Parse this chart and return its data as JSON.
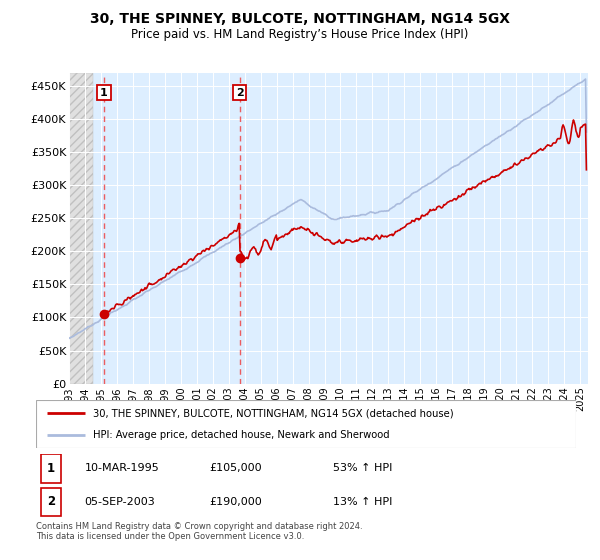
{
  "title": "30, THE SPINNEY, BULCOTE, NOTTINGHAM, NG14 5GX",
  "subtitle": "Price paid vs. HM Land Registry’s House Price Index (HPI)",
  "ylim": [
    0,
    470000
  ],
  "yticks": [
    0,
    50000,
    100000,
    150000,
    200000,
    250000,
    300000,
    350000,
    400000,
    450000
  ],
  "ytick_labels": [
    "£0",
    "£50K",
    "£100K",
    "£150K",
    "£200K",
    "£250K",
    "£300K",
    "£350K",
    "£400K",
    "£450K"
  ],
  "sale1_year": 1995.19,
  "sale1_price": 105000,
  "sale2_year": 2003.68,
  "sale2_price": 190000,
  "legend_label1": "30, THE SPINNEY, BULCOTE, NOTTINGHAM, NG14 5GX (detached house)",
  "legend_label2": "HPI: Average price, detached house, Newark and Sherwood",
  "ann1_date": "10-MAR-1995",
  "ann1_price": "£105,000",
  "ann1_hpi": "53% ↑ HPI",
  "ann2_date": "05-SEP-2003",
  "ann2_price": "£190,000",
  "ann2_hpi": "13% ↑ HPI",
  "footer": "Contains HM Land Registry data © Crown copyright and database right 2024.\nThis data is licensed under the Open Government Licence v3.0.",
  "bg_color": "#ddeeff",
  "hatch_color": "#d8d8d8",
  "line_color_price": "#cc0000",
  "line_color_hpi": "#aabbdd",
  "dot_color": "#cc0000",
  "vline_color": "#ee4444",
  "grid_color": "#ffffff",
  "xlim_left": 1993.0,
  "xlim_right": 2025.5
}
